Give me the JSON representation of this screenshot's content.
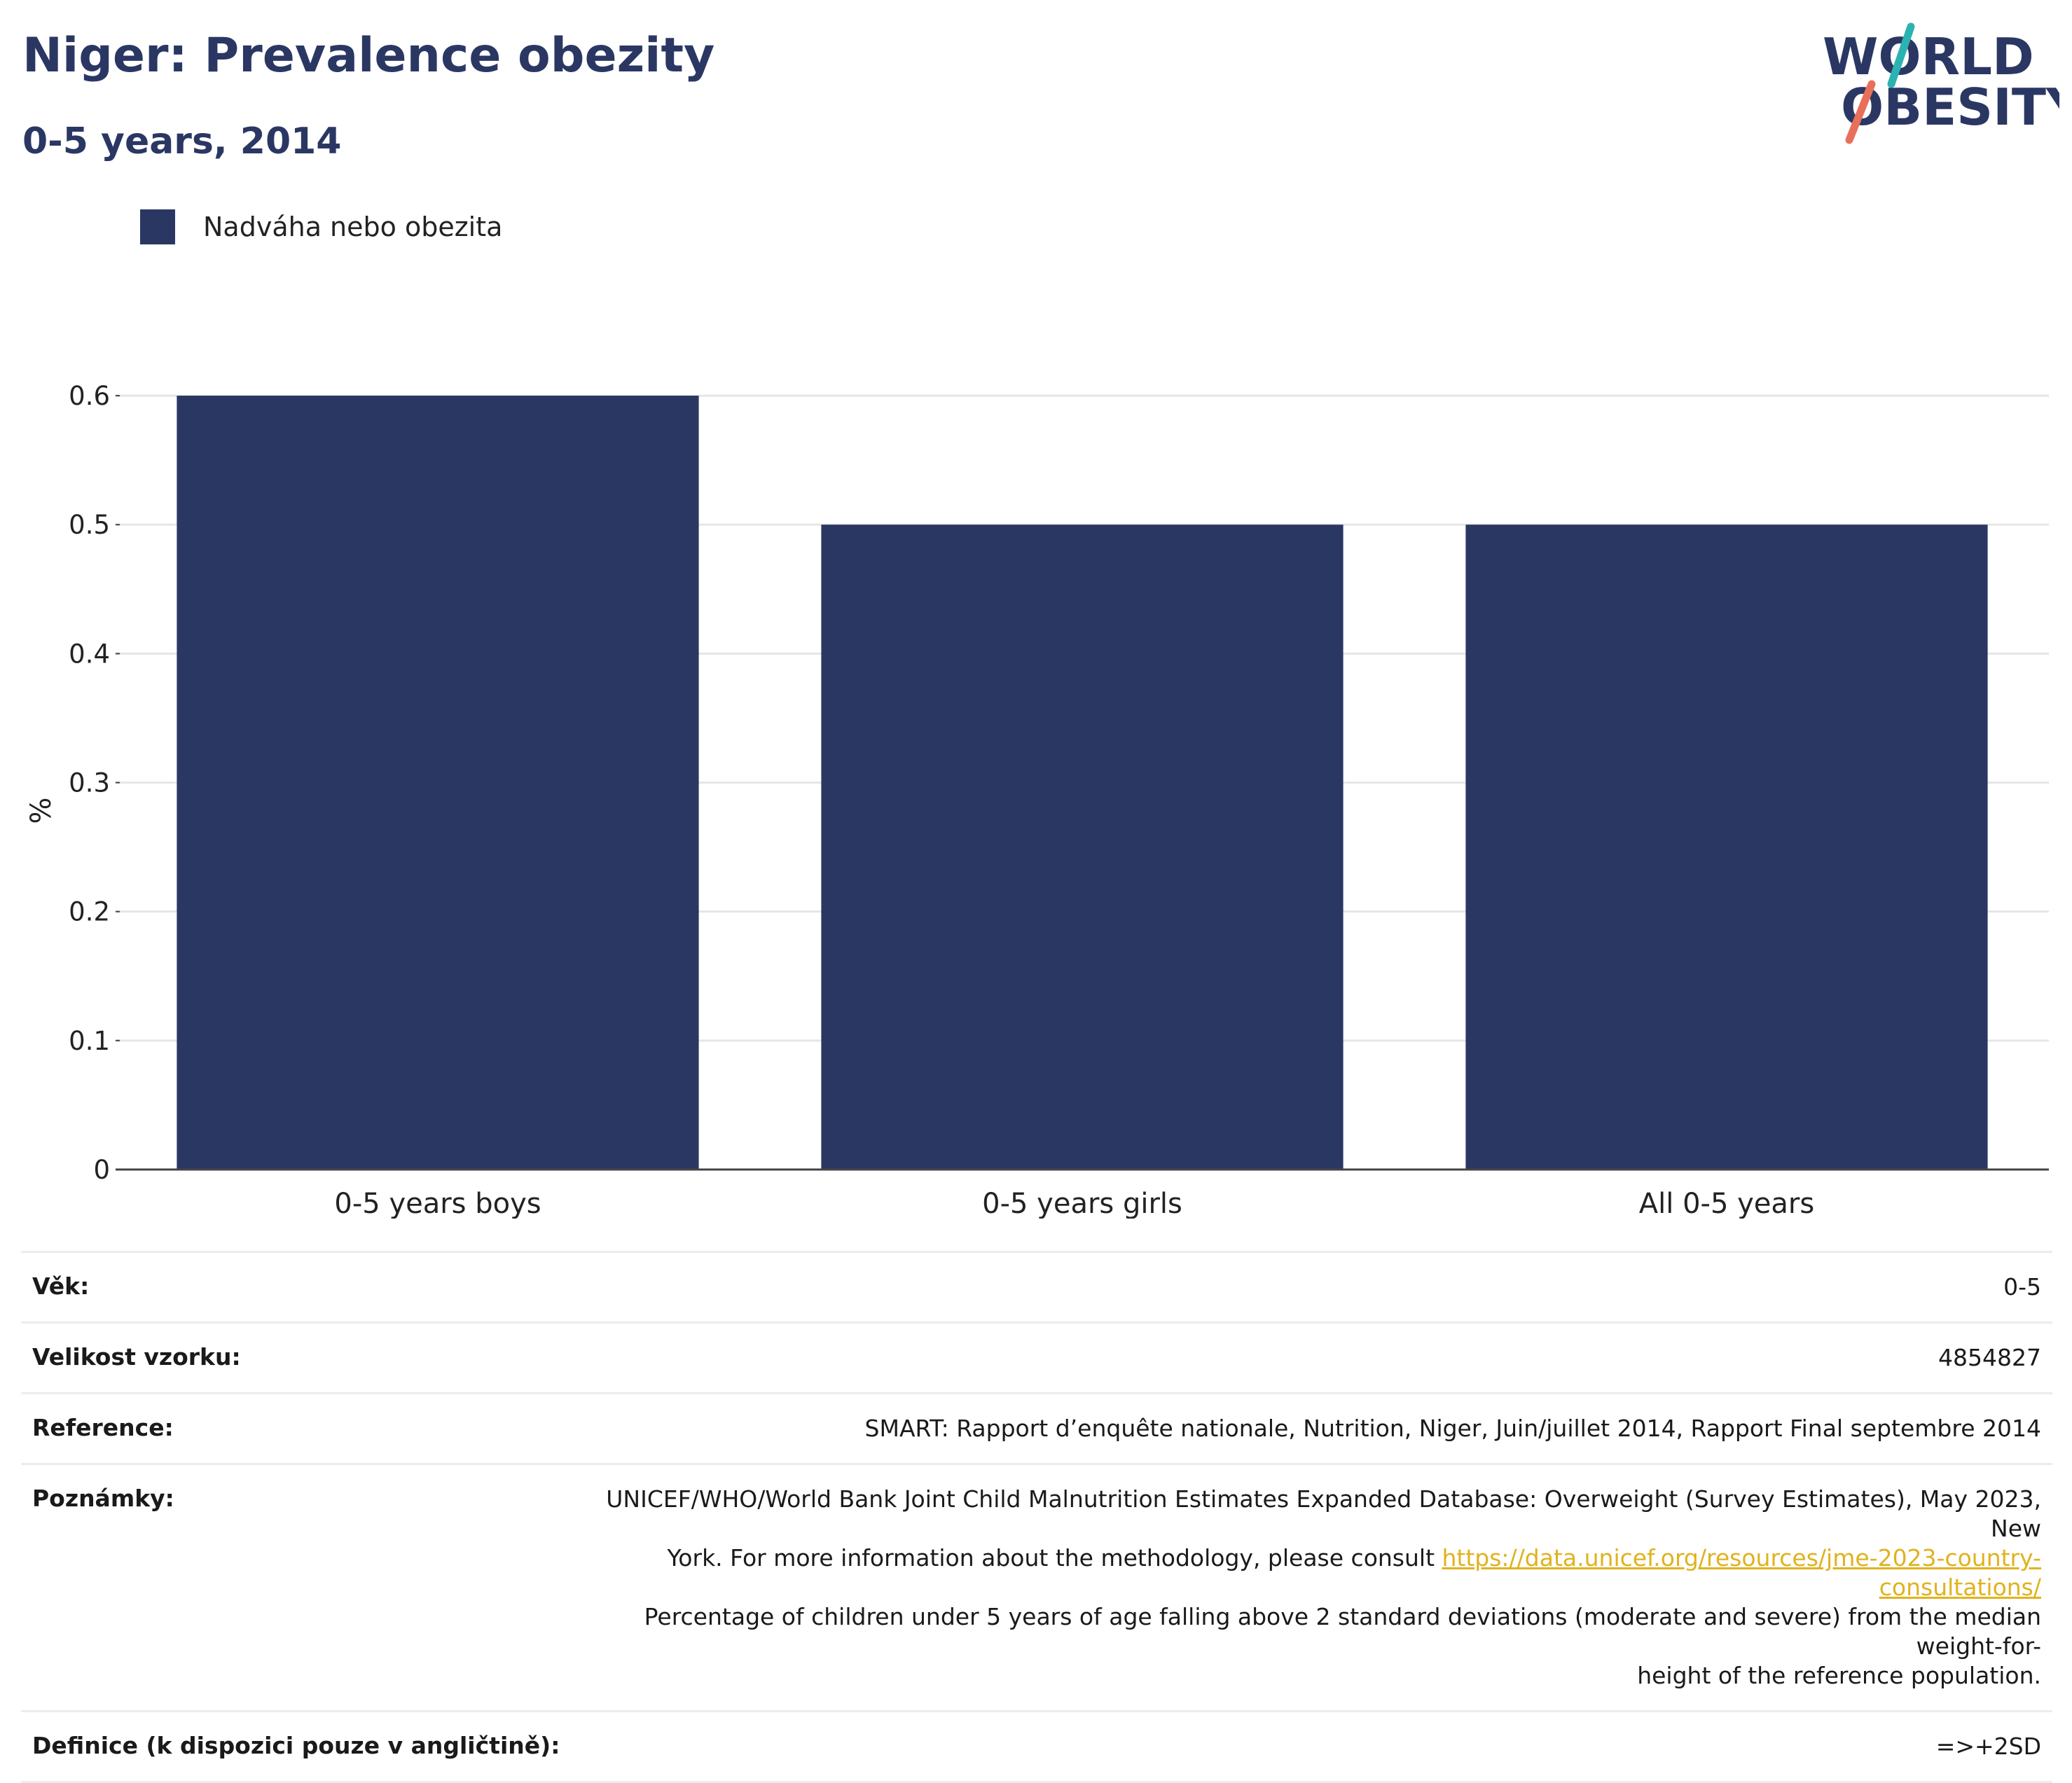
{
  "header": {
    "title": "Niger: Prevalence obezity",
    "subtitle": "0-5 years, 2014"
  },
  "logo": {
    "line1": "WORLD",
    "line2": "OBESITY"
  },
  "legend": {
    "label": "Nadváha nebo obezita"
  },
  "colors": {
    "bar": "#2b3763",
    "title": "#2b3763",
    "link": "#e0b21e",
    "logo_teal": "#2bb3b1",
    "logo_coral": "#e8705b"
  },
  "chart_data": {
    "type": "bar",
    "categories": [
      "0-5 years boys",
      "0-5 years girls",
      "All 0-5 years"
    ],
    "series": [
      {
        "name": "Nadváha nebo obezita",
        "values": [
          0.6,
          0.5,
          0.5
        ]
      }
    ],
    "title": "Niger: Prevalence obezity",
    "subtitle": "0-5 years, 2014",
    "xlabel": "",
    "ylabel": "%",
    "ylim": [
      0,
      0.6
    ],
    "yticks": [
      "0",
      "0.1",
      "0.2",
      "0.3",
      "0.4",
      "0.5",
      "0.6"
    ],
    "grid": true,
    "legend_position": "top-left"
  },
  "meta": {
    "age_label": "Věk:",
    "age_value": "0-5",
    "sample_label": "Velikost vzorku:",
    "sample_value": "4854827",
    "reference_label": "Reference:",
    "reference_value": "SMART: Rapport d’enquête nationale, Nutrition, Niger, Juin/juillet 2014, Rapport Final septembre 2014",
    "notes_label": "Poznámky:",
    "notes_line1": "UNICEF/WHO/World Bank Joint Child Malnutrition Estimates Expanded Database: Overweight (Survey Estimates), May 2023, New",
    "notes_line2_prefix": "York. For more information about the methodology, please consult ",
    "notes_link": "https://data.unicef.org/resources/jme-2023-country-consultations/",
    "notes_line3": "Percentage of children under 5 years of age falling above 2 standard deviations (moderate and severe) from the median weight-for-",
    "notes_line4": "height of the reference population.",
    "definition_label": "Definice (k dispozici pouze v angličtině):",
    "definition_value": "=>+2SD"
  }
}
